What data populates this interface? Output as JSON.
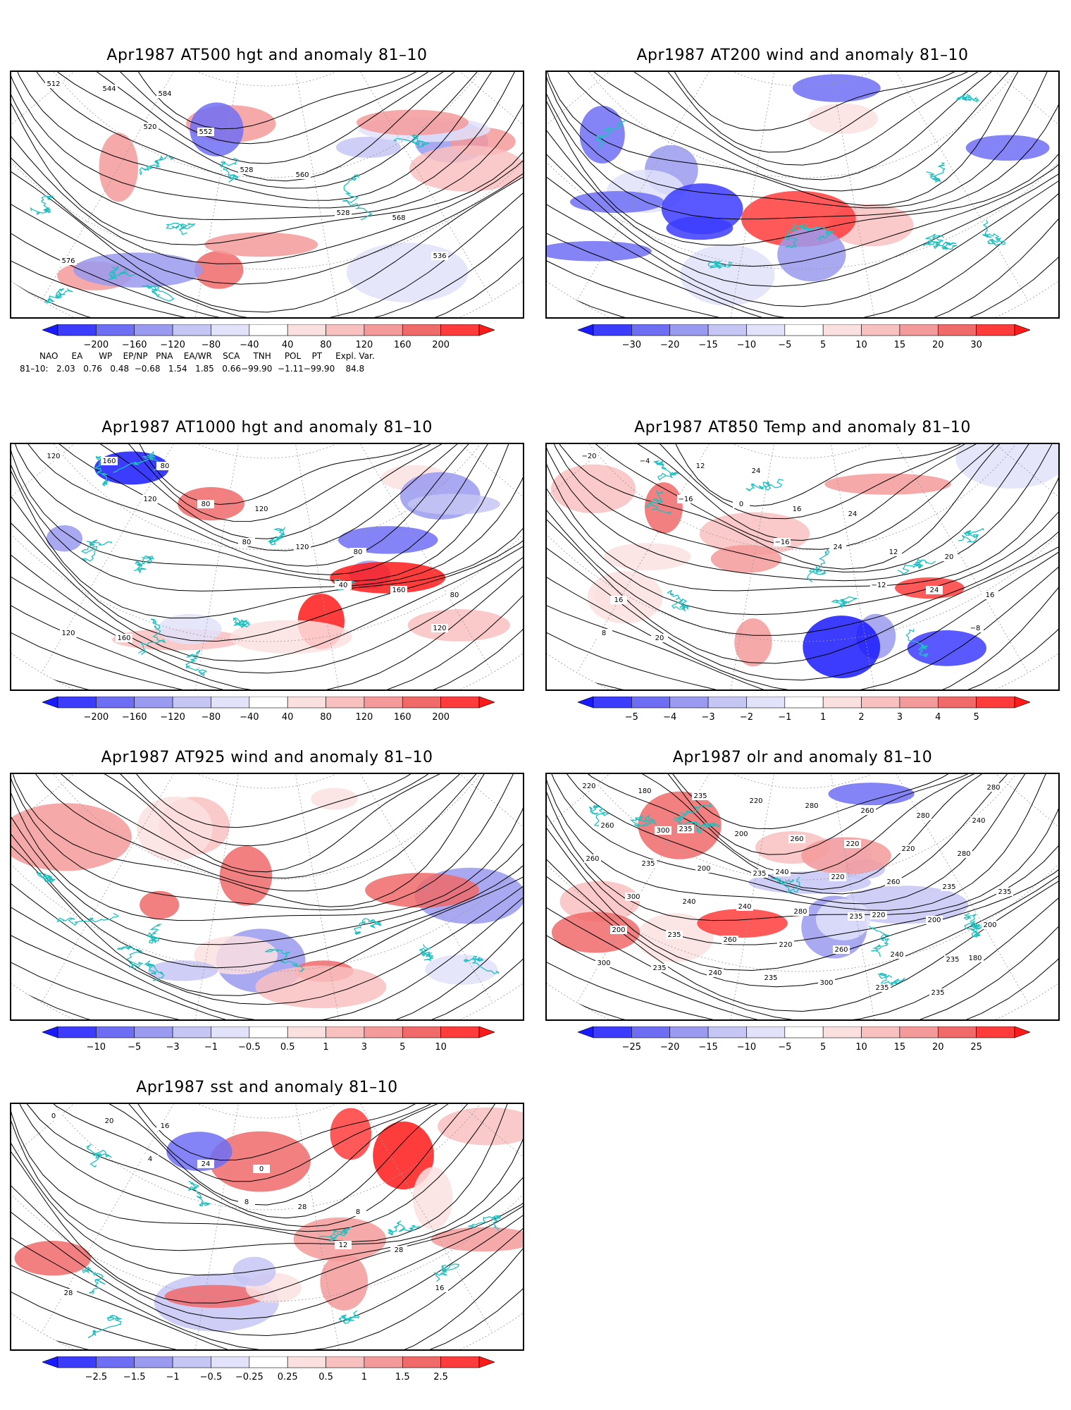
{
  "palette": {
    "blues": [
      "#1a1aff",
      "#3c3cff",
      "#6e6ef5",
      "#9a9af0",
      "#c6c6f5",
      "#e2e2fa"
    ],
    "reds": [
      "#fbe0e0",
      "#f9c0c0",
      "#f59a9a",
      "#f06a6a",
      "#ff3c3c",
      "#ff1a1a"
    ],
    "coast": "#20c0c0",
    "contour": "#000000"
  },
  "panels": [
    {
      "id": "p1",
      "title": "Apr1987 AT500 hgt and anomaly 81–10",
      "ticks": [
        "−200",
        "−160",
        "−120",
        "−80",
        "−40",
        "40",
        "80",
        "120",
        "160",
        "200"
      ],
      "labels": [
        "512",
        "520",
        "528",
        "528",
        "536",
        "544",
        "552",
        "560",
        "568",
        "576",
        "584"
      ]
    },
    {
      "id": "p2",
      "title": "Apr1987 AT200 wind and anomaly 81–10",
      "ticks": [
        "−30",
        "−20",
        "−15",
        "−10",
        "−5",
        "5",
        "10",
        "15",
        "20",
        "30"
      ],
      "labels": []
    },
    {
      "id": "p3",
      "title": "Apr1987 AT1000 hgt and anomaly 81–10",
      "ticks": [
        "−200",
        "−160",
        "−120",
        "−80",
        "−40",
        "40",
        "80",
        "120",
        "160",
        "200"
      ],
      "labels": [
        "120",
        "120",
        "80",
        "40",
        "120",
        "160",
        "80",
        "120",
        "160",
        "120",
        "80",
        "120",
        "80",
        "80",
        "160"
      ]
    },
    {
      "id": "p4",
      "title": "Apr1987 AT850 Temp and anomaly 81–10",
      "ticks": [
        "−5",
        "−4",
        "−3",
        "−2",
        "−1",
        "1",
        "2",
        "3",
        "4",
        "5"
      ],
      "labels": [
        "−20",
        "−16",
        "−16",
        "−12",
        "−8",
        "−4",
        "0",
        "24",
        "24",
        "8",
        "12",
        "16",
        "12",
        "16",
        "20",
        "24",
        "24",
        "20",
        "16"
      ]
    },
    {
      "id": "p5",
      "title": "Apr1987 AT925 wind and anomaly 81–10",
      "ticks": [
        "−10",
        "−5",
        "−3",
        "−1",
        "−0.5",
        "0.5",
        "1",
        "3",
        "5",
        "10"
      ],
      "labels": []
    },
    {
      "id": "p6",
      "title": "Apr1987 olr and anomaly 81–10",
      "ticks": [
        "−25",
        "−20",
        "−15",
        "−10",
        "−5",
        "5",
        "10",
        "15",
        "20",
        "25"
      ],
      "labels": [
        "220",
        "235",
        "240",
        "220",
        "180",
        "180",
        "200",
        "220",
        "200",
        "300",
        "235",
        "260",
        "260",
        "200",
        "235",
        "220",
        "220",
        "235",
        "200",
        "240",
        "280",
        "220",
        "235",
        "235",
        "235",
        "260",
        "280",
        "300",
        "260",
        "300",
        "280",
        "260",
        "240",
        "220",
        "235",
        "240",
        "235",
        "240",
        "260",
        "235",
        "260",
        "200",
        "280",
        "240",
        "280",
        "300",
        "235",
        "235",
        "235"
      ]
    },
    {
      "id": "p7",
      "title": "Apr1987 sst and anomaly 81–10",
      "ticks": [
        "−2.5",
        "−1.5",
        "−1",
        "−0.5",
        "−0.25",
        "0.25",
        "0.5",
        "1",
        "1.5",
        "2.5"
      ],
      "labels": [
        "0",
        "4",
        "8",
        "12",
        "16",
        "20",
        "24",
        "28",
        "28",
        "28",
        "16",
        "0",
        "8"
      ]
    }
  ],
  "teleconnection": {
    "headers": [
      "NAO",
      "EA",
      "WP",
      "EP/NP",
      "PNA",
      "EA/WR",
      "SCA",
      "TNH",
      "POL",
      "PT",
      "Expl. Var."
    ],
    "row_label": "81–10:",
    "values_text": "2.03   0.76   0.48  −0.68   1.54   1.85   0.66−99.90  −1.11−99.90    84.8"
  }
}
